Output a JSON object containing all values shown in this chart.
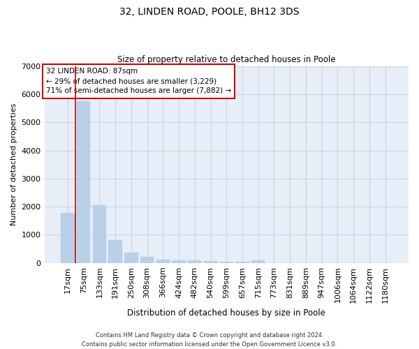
{
  "title": "32, LINDEN ROAD, POOLE, BH12 3DS",
  "subtitle": "Size of property relative to detached houses in Poole",
  "xlabel": "Distribution of detached houses by size in Poole",
  "ylabel": "Number of detached properties",
  "categories": [
    "17sqm",
    "75sqm",
    "133sqm",
    "191sqm",
    "250sqm",
    "308sqm",
    "366sqm",
    "424sqm",
    "482sqm",
    "540sqm",
    "599sqm",
    "657sqm",
    "715sqm",
    "773sqm",
    "831sqm",
    "889sqm",
    "947sqm",
    "1006sqm",
    "1064sqm",
    "1122sqm",
    "1180sqm"
  ],
  "values": [
    1780,
    5750,
    2060,
    810,
    360,
    220,
    130,
    100,
    90,
    80,
    55,
    50,
    90,
    0,
    0,
    0,
    0,
    0,
    0,
    0,
    0
  ],
  "bar_color": "#b8d0e8",
  "highlight_color": "#cc0000",
  "red_line_x": 0.5,
  "property_label": "32 LINDEN ROAD: 87sqm",
  "annotation_line1": "← 29% of detached houses are smaller (3,229)",
  "annotation_line2": "71% of semi-detached houses are larger (7,882) →",
  "box_facecolor": "#ffffff",
  "box_edgecolor": "#cc0000",
  "ylim": [
    0,
    7000
  ],
  "yticks": [
    0,
    1000,
    2000,
    3000,
    4000,
    5000,
    6000,
    7000
  ],
  "grid_color": "#c8d4e4",
  "ax_background": "#e8eef8",
  "footer_line1": "Contains HM Land Registry data © Crown copyright and database right 2024.",
  "footer_line2": "Contains public sector information licensed under the Open Government Licence v3.0.",
  "figsize": [
    6.0,
    5.0
  ],
  "dpi": 100
}
